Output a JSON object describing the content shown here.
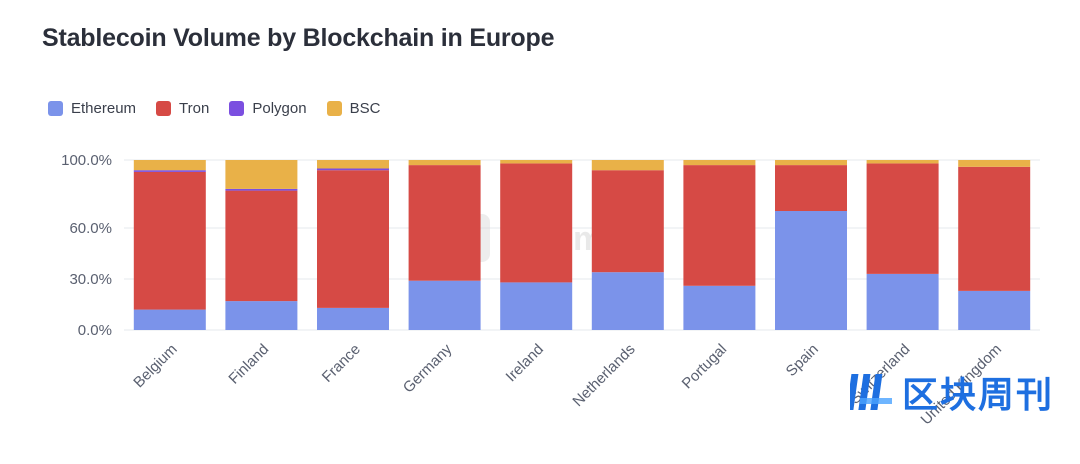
{
  "colors": {
    "Ethereum": "#7b93ea",
    "Tron": "#d64a45",
    "Polygon": "#7b4fe0",
    "BSC": "#e9b148",
    "grid": "#e6e8ee",
    "watermark_blue": "#1e6fe0"
  },
  "watermark": {
    "artemis": "Artemis",
    "publisher": "区块周刊",
    "logo_icon": "brand-logo-icon"
  },
  "chart_data": {
    "type": "bar",
    "stacked": true,
    "title": "Stablecoin Volume by Blockchain in Europe",
    "xlabel": "",
    "ylabel": "",
    "ylim": [
      0,
      100
    ],
    "y_ticks": [
      "0.0%",
      "30.0%",
      "60.0%",
      "100.0%"
    ],
    "y_tick_values": [
      0,
      30,
      60,
      100
    ],
    "legend_position": "top-left",
    "grid": true,
    "categories": [
      "Belgium",
      "Finland",
      "France",
      "Germany",
      "Ireland",
      "Netherlands",
      "Portugal",
      "Spain",
      "Switzerland",
      "United Kingdom"
    ],
    "series": [
      {
        "name": "Ethereum",
        "values": [
          12,
          17,
          13,
          29,
          28,
          34,
          26,
          70,
          33,
          23
        ]
      },
      {
        "name": "Tron",
        "values": [
          81,
          65,
          81,
          68,
          70,
          60,
          71,
          27,
          65,
          73
        ]
      },
      {
        "name": "Polygon",
        "values": [
          1,
          1,
          1,
          0,
          0,
          0,
          0,
          0,
          0,
          0
        ]
      },
      {
        "name": "BSC",
        "values": [
          6,
          17,
          5,
          3,
          2,
          6,
          3,
          3,
          2,
          4
        ]
      }
    ]
  }
}
